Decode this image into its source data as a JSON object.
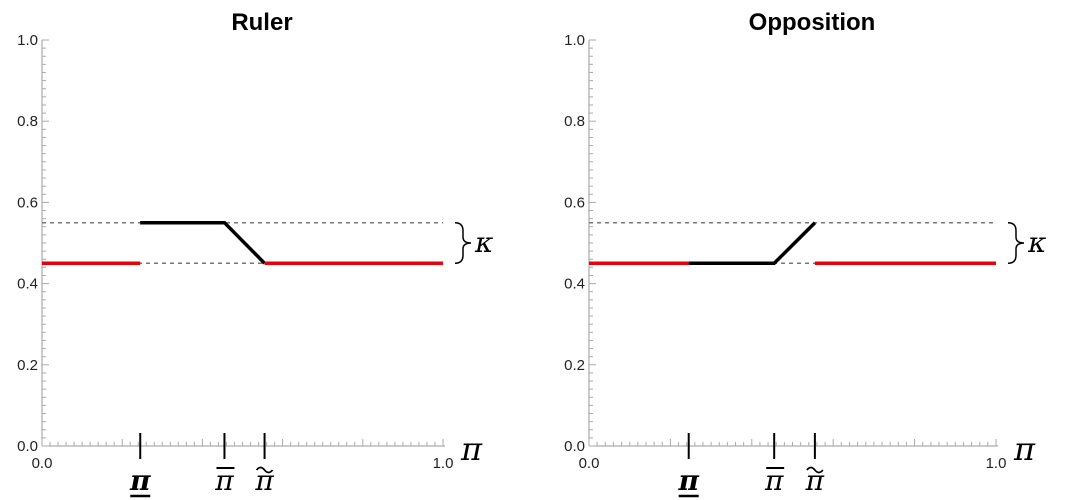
{
  "chart_data": [
    {
      "type": "line",
      "title": "Ruler",
      "xlim": [
        0,
        1
      ],
      "ylim": [
        0,
        1
      ],
      "y_ticks": [
        "0.0",
        "0.2",
        "0.4",
        "0.6",
        "0.8",
        "1.0"
      ],
      "x_tick_labels": [
        "0.0",
        "1.0"
      ],
      "axis_symbol": "π",
      "kappa_label": "κ",
      "markers": [
        {
          "x": 0.245,
          "label": "π",
          "style": "underline"
        },
        {
          "x": 0.455,
          "label": "π",
          "style": "overline"
        },
        {
          "x": 0.555,
          "label": "π",
          "style": "tilde"
        }
      ],
      "reference_levels": [
        0.45,
        0.55
      ],
      "segments": [
        {
          "color": "red",
          "points": [
            [
              0,
              0.45
            ],
            [
              0.245,
              0.45
            ]
          ]
        },
        {
          "color": "black",
          "points": [
            [
              0.245,
              0.55
            ],
            [
              0.455,
              0.55
            ],
            [
              0.555,
              0.45
            ]
          ]
        },
        {
          "color": "red",
          "points": [
            [
              0.555,
              0.45
            ],
            [
              1.0,
              0.45
            ]
          ]
        }
      ]
    },
    {
      "type": "line",
      "title": "Opposition",
      "xlim": [
        0,
        1
      ],
      "ylim": [
        0,
        1
      ],
      "y_ticks": [
        "0.0",
        "0.2",
        "0.4",
        "0.6",
        "0.8",
        "1.0"
      ],
      "x_tick_labels": [
        "0.0",
        "1.0"
      ],
      "axis_symbol": "π",
      "kappa_label": "κ",
      "markers": [
        {
          "x": 0.245,
          "label": "π",
          "style": "underline"
        },
        {
          "x": 0.455,
          "label": "π",
          "style": "overline"
        },
        {
          "x": 0.555,
          "label": "π",
          "style": "tilde"
        }
      ],
      "reference_levels": [
        0.45,
        0.55
      ],
      "segments": [
        {
          "color": "red",
          "points": [
            [
              0,
              0.45
            ],
            [
              0.245,
              0.45
            ]
          ]
        },
        {
          "color": "black",
          "points": [
            [
              0.245,
              0.45
            ],
            [
              0.455,
              0.45
            ],
            [
              0.555,
              0.55
            ]
          ]
        },
        {
          "color": "red",
          "points": [
            [
              0.555,
              0.45
            ],
            [
              1.0,
              0.45
            ]
          ]
        }
      ]
    }
  ]
}
